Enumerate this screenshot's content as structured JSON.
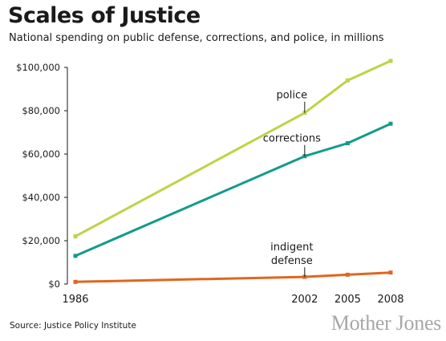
{
  "title": "Scales of Justice",
  "subtitle": "National spending on public defense, corrections, and police, in millions",
  "source": "Source: Justice Policy Institute",
  "logo_text": "Mother Jones",
  "chart_data": {
    "type": "line",
    "title": "Scales of Justice",
    "subtitle": "National spending on public defense, corrections, and police, in millions",
    "x": [
      1986,
      2002,
      2005,
      2008
    ],
    "x_tick_labels": [
      "1986",
      "2002",
      "2005",
      "2008"
    ],
    "xlim": [
      1986,
      2008
    ],
    "ylim": [
      0,
      100000
    ],
    "y_ticks": [
      0,
      20000,
      40000,
      60000,
      80000,
      100000
    ],
    "y_tick_labels": [
      "$0",
      "$20,000",
      "$40,000",
      "$60,000",
      "$80,000",
      "$100,000"
    ],
    "grid": false,
    "series": [
      {
        "name": "police",
        "color": "#bdd444",
        "values": [
          22000,
          79000,
          94000,
          103000
        ]
      },
      {
        "name": "corrections",
        "color": "#139b8b",
        "values": [
          13000,
          59000,
          65000,
          74000
        ]
      },
      {
        "name": "indigent defense",
        "label_lines": [
          "indigent",
          "defense"
        ],
        "color": "#e0661f",
        "values": [
          1000,
          3300,
          4300,
          5300
        ]
      }
    ]
  }
}
